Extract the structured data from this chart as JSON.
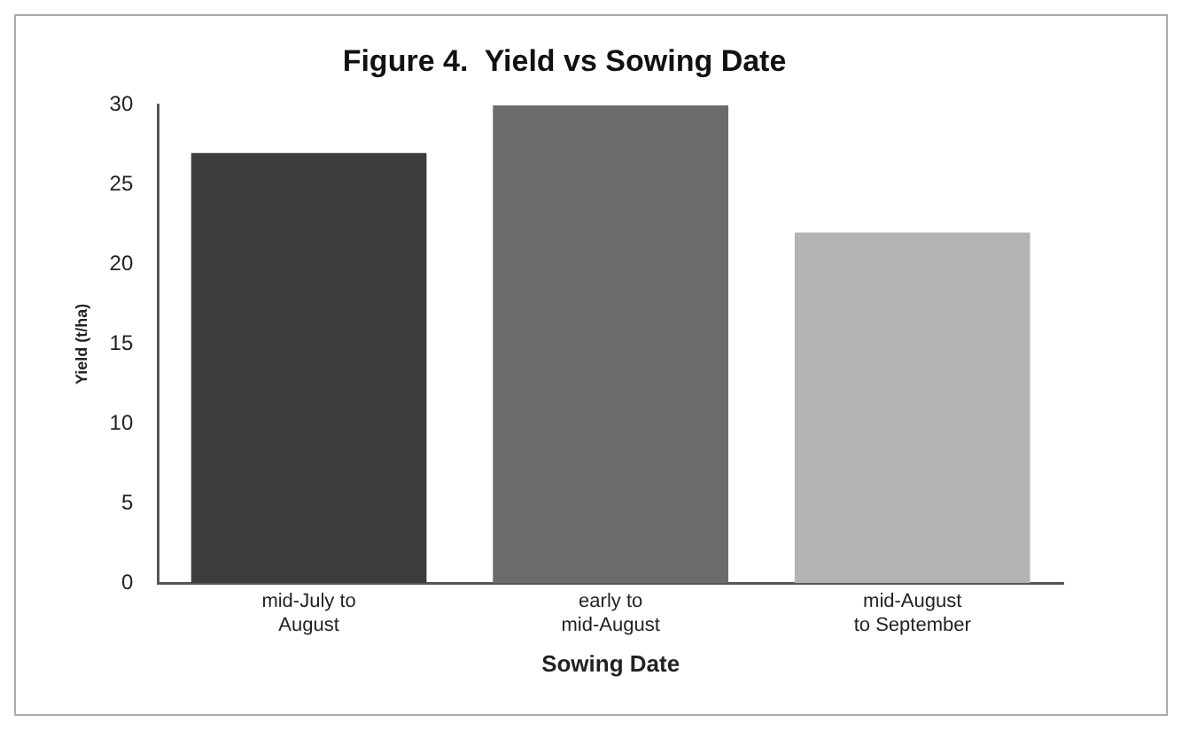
{
  "chart_data": {
    "type": "bar",
    "title": "Figure 4.  Yield vs Sowing Date",
    "xlabel": "Sowing Date",
    "ylabel": "Yield (t/ha)",
    "categories": [
      "mid-July to\nAugust",
      "early to\nmid-August",
      "mid-August\nto September"
    ],
    "values": [
      27,
      30,
      22
    ],
    "colors": [
      "#3c3c3c",
      "#6b6b6b",
      "#b3b3b3"
    ],
    "ylim": [
      0,
      30
    ],
    "yticks": [
      0,
      5,
      10,
      15,
      20,
      25,
      30
    ],
    "grid": false,
    "legend": false
  }
}
